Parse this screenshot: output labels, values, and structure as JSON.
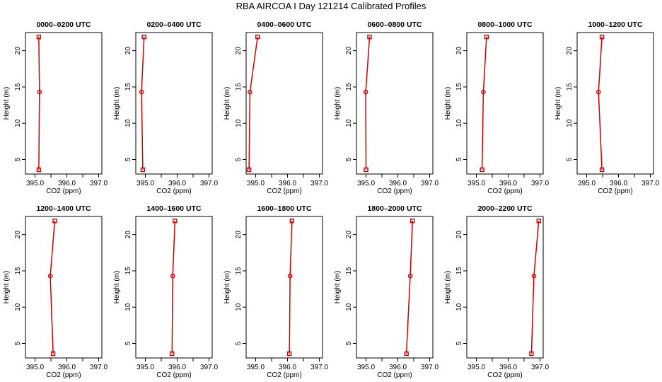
{
  "figure": {
    "title": "RBA AIRCOA I  Day 121214  Calibrated Profiles",
    "line_color": "#d40000"
  },
  "chart_data": [
    {
      "type": "line",
      "title": "0000–0200 UTC",
      "xlabel": "CO2 (ppm)",
      "ylabel": "Height (m)",
      "xlim": [
        394.7,
        397.1
      ],
      "ylim": [
        3,
        22.5
      ],
      "xticks": [
        "395.0",
        "396.0",
        "397.0"
      ],
      "yticks": [
        "5",
        "10",
        "15",
        "20"
      ],
      "x": [
        395.12,
        395.14,
        395.12
      ],
      "y": [
        3.6,
        14.3,
        21.9
      ]
    },
    {
      "type": "line",
      "title": "0200–0400 UTC",
      "xlabel": "CO2 (ppm)",
      "ylabel": "Height (m)",
      "xlim": [
        394.7,
        397.1
      ],
      "ylim": [
        3,
        22.5
      ],
      "xticks": [
        "395.0",
        "396.0",
        "397.0"
      ],
      "yticks": [
        "5",
        "10",
        "15",
        "20"
      ],
      "x": [
        394.92,
        394.88,
        394.96
      ],
      "y": [
        3.6,
        14.3,
        21.9
      ]
    },
    {
      "type": "line",
      "title": "0400–0600 UTC",
      "xlabel": "CO2 (ppm)",
      "ylabel": "Height (m)",
      "xlim": [
        394.7,
        397.1
      ],
      "ylim": [
        3,
        22.5
      ],
      "xticks": [
        "395.0",
        "396.0",
        "397.0"
      ],
      "yticks": [
        "5",
        "10",
        "15",
        "20"
      ],
      "x": [
        394.79,
        394.82,
        395.06
      ],
      "y": [
        3.6,
        14.3,
        21.9
      ]
    },
    {
      "type": "line",
      "title": "0600–0800 UTC",
      "xlabel": "CO2 (ppm)",
      "ylabel": "Height (m)",
      "xlim": [
        394.7,
        397.1
      ],
      "ylim": [
        3,
        22.5
      ],
      "xticks": [
        "395.0",
        "396.0",
        "397.0"
      ],
      "yticks": [
        "5",
        "10",
        "15",
        "20"
      ],
      "x": [
        395.0,
        394.99,
        395.11
      ],
      "y": [
        3.6,
        14.3,
        21.9
      ]
    },
    {
      "type": "line",
      "title": "0800–1000 UTC",
      "xlabel": "CO2 (ppm)",
      "ylabel": "Height (m)",
      "xlim": [
        394.7,
        397.1
      ],
      "ylim": [
        3,
        22.5
      ],
      "xticks": [
        "395.0",
        "396.0",
        "397.0"
      ],
      "yticks": [
        "5",
        "10",
        "15",
        "20"
      ],
      "x": [
        395.18,
        395.22,
        395.32
      ],
      "y": [
        3.6,
        14.3,
        21.9
      ]
    },
    {
      "type": "line",
      "title": "1000–1200 UTC",
      "xlabel": "CO2 (ppm)",
      "ylabel": "Height (m)",
      "xlim": [
        394.7,
        397.1
      ],
      "ylim": [
        3,
        22.5
      ],
      "xticks": [
        "395.0",
        "396.0",
        "397.0"
      ],
      "yticks": [
        "5",
        "10",
        "15",
        "20"
      ],
      "x": [
        395.48,
        395.37,
        395.48
      ],
      "y": [
        3.6,
        14.3,
        21.9
      ]
    },
    {
      "type": "line",
      "title": "1200–1400 UTC",
      "xlabel": "CO2 (ppm)",
      "ylabel": "Height (m)",
      "xlim": [
        394.7,
        397.1
      ],
      "ylim": [
        3,
        22.5
      ],
      "xticks": [
        "395.0",
        "396.0",
        "397.0"
      ],
      "yticks": [
        "5",
        "10",
        "15",
        "20"
      ],
      "x": [
        395.57,
        395.48,
        395.62
      ],
      "y": [
        3.6,
        14.3,
        21.9
      ]
    },
    {
      "type": "line",
      "title": "1400–1600 UTC",
      "xlabel": "CO2 (ppm)",
      "ylabel": "Height (m)",
      "xlim": [
        394.7,
        397.1
      ],
      "ylim": [
        3,
        22.5
      ],
      "xticks": [
        "395.0",
        "396.0",
        "397.0"
      ],
      "yticks": [
        "5",
        "10",
        "15",
        "20"
      ],
      "x": [
        395.84,
        395.86,
        395.93
      ],
      "y": [
        3.6,
        14.3,
        21.9
      ]
    },
    {
      "type": "line",
      "title": "1600–1800 UTC",
      "xlabel": "CO2 (ppm)",
      "ylabel": "Height (m)",
      "xlim": [
        394.7,
        397.1
      ],
      "ylim": [
        3,
        22.5
      ],
      "xticks": [
        "395.0",
        "396.0",
        "397.0"
      ],
      "yticks": [
        "5",
        "10",
        "15",
        "20"
      ],
      "x": [
        396.06,
        396.08,
        396.14
      ],
      "y": [
        3.6,
        14.3,
        21.9
      ]
    },
    {
      "type": "line",
      "title": "1800–2000 UTC",
      "xlabel": "CO2 (ppm)",
      "ylabel": "Height (m)",
      "xlim": [
        394.7,
        397.1
      ],
      "ylim": [
        3,
        22.5
      ],
      "xticks": [
        "395.0",
        "396.0",
        "397.0"
      ],
      "yticks": [
        "5",
        "10",
        "15",
        "20"
      ],
      "x": [
        396.27,
        396.39,
        396.46
      ],
      "y": [
        3.6,
        14.3,
        21.9
      ]
    },
    {
      "type": "line",
      "title": "2000–2200 UTC",
      "xlabel": "CO2 (ppm)",
      "ylabel": "Height (m)",
      "xlim": [
        394.7,
        397.1
      ],
      "ylim": [
        3,
        22.5
      ],
      "xticks": [
        "395.0",
        "396.0",
        "397.0"
      ],
      "yticks": [
        "5",
        "10",
        "15",
        "20"
      ],
      "x": [
        396.73,
        396.81,
        396.96
      ],
      "y": [
        3.6,
        14.3,
        21.9
      ]
    }
  ]
}
